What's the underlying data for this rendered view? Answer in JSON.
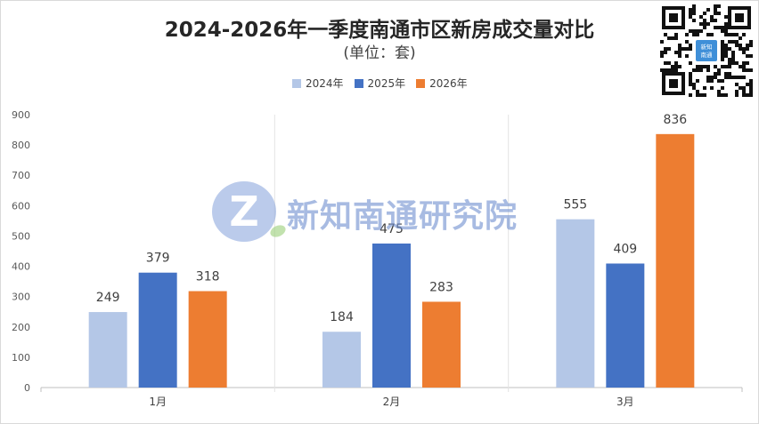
{
  "chart_data": {
    "type": "bar",
    "title": "2024-2026年一季度南通市区新房成交量对比",
    "subtitle": "(单位：套)",
    "categories": [
      "1月",
      "2月",
      "3月"
    ],
    "series": [
      {
        "name": "2024年",
        "values": [
          249,
          184,
          555
        ],
        "color": "#b4c7e7"
      },
      {
        "name": "2025年",
        "values": [
          379,
          475,
          409
        ],
        "color": "#4472c4"
      },
      {
        "name": "2026年",
        "values": [
          318,
          283,
          836
        ],
        "color": "#ed7d31"
      }
    ],
    "ylim": [
      0,
      900
    ],
    "yticks": [
      0,
      100,
      200,
      300,
      400,
      500,
      600,
      700,
      800,
      900
    ],
    "xlabel": "",
    "ylabel": "",
    "grid": "vertical category separators",
    "legend_position": "top-center",
    "data_labels": true
  },
  "watermark": {
    "text": "新知南通研究院",
    "logo_letter": "Z"
  },
  "qr_code": {
    "center_text": "新知\n南通"
  }
}
